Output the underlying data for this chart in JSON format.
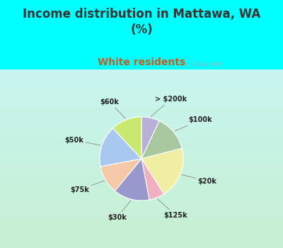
{
  "title": "Income distribution in Mattawa, WA\n(%)",
  "subtitle": "White residents",
  "title_color": "#333333",
  "subtitle_color": "#c06020",
  "bg_color": "#00ffff",
  "chart_bg_gradient_top": "#c8f5f0",
  "chart_bg_gradient_bottom": "#d8f5e8",
  "labels": [
    "> $200k",
    "$100k",
    "$20k",
    "$125k",
    "$30k",
    "$75k",
    "$50k",
    "$60k"
  ],
  "values": [
    7,
    14,
    20,
    6,
    14,
    11,
    16,
    12
  ],
  "colors": [
    "#b8b0d8",
    "#a8c8a0",
    "#f0eea0",
    "#f0b0c0",
    "#9898cc",
    "#f5c8a8",
    "#a8c8f0",
    "#c8e870"
  ],
  "watermark": "City-Data.com",
  "figsize": [
    4.0,
    3.5
  ],
  "dpi": 100
}
